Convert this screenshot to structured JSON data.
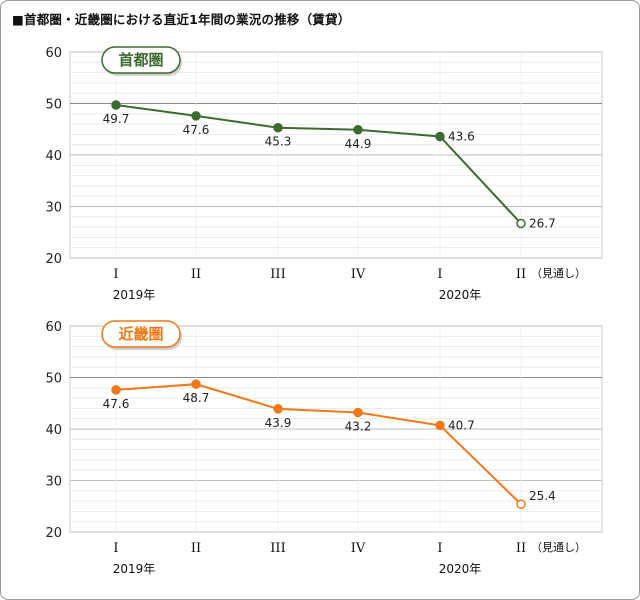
{
  "title": "■首都圏・近畿圏における直近1年間の業況の推移（賃貸）",
  "x_note": "（見通し）",
  "year_labels": [
    "2019年",
    "2020年"
  ],
  "chart_data": [
    {
      "type": "line",
      "title": "首都圏",
      "categories": [
        "I",
        "II",
        "III",
        "IV",
        "I",
        "II"
      ],
      "values": [
        49.7,
        47.6,
        45.3,
        44.9,
        43.6,
        26.7
      ],
      "forecast_last": true,
      "ylim": [
        20,
        60
      ],
      "yticks": [
        20,
        30,
        40,
        50,
        60
      ],
      "grid": true,
      "color": "#3b6b2e"
    },
    {
      "type": "line",
      "title": "近畿圏",
      "categories": [
        "I",
        "II",
        "III",
        "IV",
        "I",
        "II"
      ],
      "values": [
        47.6,
        48.7,
        43.9,
        43.2,
        40.7,
        25.4
      ],
      "forecast_last": true,
      "ylim": [
        20,
        60
      ],
      "yticks": [
        20,
        30,
        40,
        50,
        60
      ],
      "grid": true,
      "color": "#f07818"
    }
  ]
}
